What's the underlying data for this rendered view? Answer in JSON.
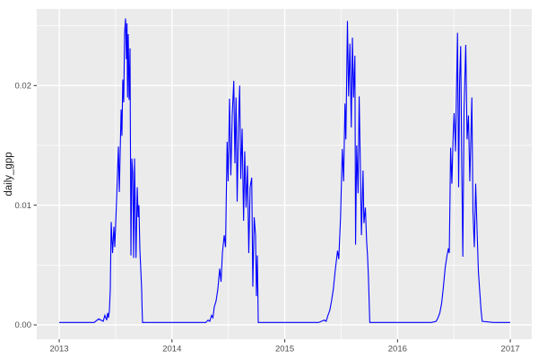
{
  "figure": {
    "background": "#FFFFFF"
  },
  "chart_data": {
    "type": "line",
    "title": "",
    "xlabel": "",
    "ylabel": "daily_gpp",
    "legend": "none",
    "grid": "on",
    "panel_background": "#EBEBEB",
    "grid_major_color": "#FFFFFF",
    "grid_minor_color": "#FFFFFF",
    "tick_mark_color": "#333333",
    "tick_label_color": "#4D4D4D",
    "axis_title_color": "#1A1A1A",
    "xlim": [
      2012.801,
      2017.19
    ],
    "ylim": [
      -0.0012,
      0.0264
    ],
    "x_ticks": [
      {
        "value": 2013,
        "label": "2013"
      },
      {
        "value": 2014,
        "label": "2014"
      },
      {
        "value": 2015,
        "label": "2015"
      },
      {
        "value": 2016,
        "label": "2016"
      },
      {
        "value": 2017,
        "label": "2017"
      }
    ],
    "y_ticks": [
      {
        "value": 0.0,
        "label": "0.00"
      },
      {
        "value": 0.01,
        "label": "0.01"
      },
      {
        "value": 0.02,
        "label": "0.02"
      }
    ],
    "x_minor": [
      2013.5,
      2014.5,
      2015.5,
      2016.5
    ],
    "y_minor": [
      0.005,
      0.015,
      0.025
    ],
    "series": [
      {
        "name": "daily_gpp",
        "color": "#0000FF",
        "points": [
          [
            2013.0,
            0.0002
          ],
          [
            2013.31,
            0.0002
          ],
          [
            2013.35,
            0.0005
          ],
          [
            2013.39,
            0.0003
          ],
          [
            2013.405,
            0.0008
          ],
          [
            2013.421,
            0.0004
          ],
          [
            2013.429,
            0.001
          ],
          [
            2013.437,
            0.0006
          ],
          [
            2013.445,
            0.0012
          ],
          [
            2013.453,
            0.003
          ],
          [
            2013.461,
            0.0086
          ],
          [
            2013.473,
            0.006
          ],
          [
            2013.485,
            0.0082
          ],
          [
            2013.493,
            0.0065
          ],
          [
            2013.509,
            0.0105
          ],
          [
            2013.525,
            0.0149
          ],
          [
            2013.533,
            0.0111
          ],
          [
            2013.549,
            0.018
          ],
          [
            2013.556,
            0.0158
          ],
          [
            2013.564,
            0.0205
          ],
          [
            2013.572,
            0.0186
          ],
          [
            2013.58,
            0.0244
          ],
          [
            2013.588,
            0.0256
          ],
          [
            2013.596,
            0.0222
          ],
          [
            2013.601,
            0.0252
          ],
          [
            2013.606,
            0.019
          ],
          [
            2013.612,
            0.0243
          ],
          [
            2013.62,
            0.0188
          ],
          [
            2013.628,
            0.0231
          ],
          [
            2013.636,
            0.0058
          ],
          [
            2013.644,
            0.0139
          ],
          [
            2013.652,
            0.0127
          ],
          [
            2013.66,
            0.0056
          ],
          [
            2013.668,
            0.0139
          ],
          [
            2013.676,
            0.0088
          ],
          [
            2013.681,
            0.0056
          ],
          [
            2013.692,
            0.0115
          ],
          [
            2013.7,
            0.009
          ],
          [
            2013.707,
            0.01
          ],
          [
            2013.715,
            0.0064
          ],
          [
            2013.723,
            0.0047
          ],
          [
            2013.731,
            0.003
          ],
          [
            2013.736,
            0.001
          ],
          [
            2013.739,
            0.0002
          ],
          [
            2013.8,
            0.0002
          ],
          [
            2014.3,
            0.0002
          ],
          [
            2014.32,
            0.0004
          ],
          [
            2014.335,
            0.0003
          ],
          [
            2014.351,
            0.0008
          ],
          [
            2014.363,
            0.0006
          ],
          [
            2014.375,
            0.0015
          ],
          [
            2014.391,
            0.002
          ],
          [
            2014.407,
            0.003
          ],
          [
            2014.423,
            0.0047
          ],
          [
            2014.435,
            0.0036
          ],
          [
            2014.447,
            0.006
          ],
          [
            2014.463,
            0.0075
          ],
          [
            2014.475,
            0.0065
          ],
          [
            2014.489,
            0.0153
          ],
          [
            2014.498,
            0.012
          ],
          [
            2014.51,
            0.0189
          ],
          [
            2014.522,
            0.0125
          ],
          [
            2014.534,
            0.0175
          ],
          [
            2014.548,
            0.0204
          ],
          [
            2014.558,
            0.0135
          ],
          [
            2014.568,
            0.019
          ],
          [
            2014.578,
            0.0103
          ],
          [
            2014.59,
            0.0168
          ],
          [
            2014.6,
            0.02
          ],
          [
            2014.61,
            0.0122
          ],
          [
            2014.622,
            0.0164
          ],
          [
            2014.635,
            0.0087
          ],
          [
            2014.645,
            0.0145
          ],
          [
            2014.657,
            0.0098
          ],
          [
            2014.669,
            0.0133
          ],
          [
            2014.681,
            0.006
          ],
          [
            2014.693,
            0.0115
          ],
          [
            2014.707,
            0.0123
          ],
          [
            2014.717,
            0.0032
          ],
          [
            2014.729,
            0.009
          ],
          [
            2014.741,
            0.0075
          ],
          [
            2014.749,
            0.0024
          ],
          [
            2014.757,
            0.0058
          ],
          [
            2014.762,
            0.0025
          ],
          [
            2014.765,
            0.0002
          ],
          [
            2014.85,
            0.0002
          ],
          [
            2015.3,
            0.0002
          ],
          [
            2015.351,
            0.0004
          ],
          [
            2015.367,
            0.0003
          ],
          [
            2015.383,
            0.0008
          ],
          [
            2015.399,
            0.0012
          ],
          [
            2015.415,
            0.002
          ],
          [
            2015.431,
            0.003
          ],
          [
            2015.447,
            0.0045
          ],
          [
            2015.468,
            0.0062
          ],
          [
            2015.479,
            0.0055
          ],
          [
            2015.495,
            0.009
          ],
          [
            2015.51,
            0.0147
          ],
          [
            2015.522,
            0.012
          ],
          [
            2015.534,
            0.0185
          ],
          [
            2015.542,
            0.0155
          ],
          [
            2015.556,
            0.0254
          ],
          [
            2015.566,
            0.0191
          ],
          [
            2015.578,
            0.0235
          ],
          [
            2015.59,
            0.0165
          ],
          [
            2015.6,
            0.024
          ],
          [
            2015.61,
            0.019
          ],
          [
            2015.622,
            0.0225
          ],
          [
            2015.628,
            0.0067
          ],
          [
            2015.638,
            0.015
          ],
          [
            2015.65,
            0.011
          ],
          [
            2015.66,
            0.0191
          ],
          [
            2015.67,
            0.0135
          ],
          [
            2015.68,
            0.0075
          ],
          [
            2015.694,
            0.0129
          ],
          [
            2015.702,
            0.0085
          ],
          [
            2015.715,
            0.0098
          ],
          [
            2015.726,
            0.007
          ],
          [
            2015.734,
            0.0058
          ],
          [
            2015.742,
            0.004
          ],
          [
            2015.75,
            0.0015
          ],
          [
            2015.754,
            0.0002
          ],
          [
            2015.85,
            0.0002
          ],
          [
            2016.3,
            0.0002
          ],
          [
            2016.343,
            0.0003
          ],
          [
            2016.359,
            0.0006
          ],
          [
            2016.375,
            0.001
          ],
          [
            2016.391,
            0.0018
          ],
          [
            2016.407,
            0.0032
          ],
          [
            2016.423,
            0.0048
          ],
          [
            2016.439,
            0.0058
          ],
          [
            2016.451,
            0.0064
          ],
          [
            2016.459,
            0.006
          ],
          [
            2016.471,
            0.0148
          ],
          [
            2016.482,
            0.0118
          ],
          [
            2016.494,
            0.016
          ],
          [
            2016.502,
            0.0177
          ],
          [
            2016.514,
            0.0145
          ],
          [
            2016.532,
            0.0244
          ],
          [
            2016.542,
            0.0115
          ],
          [
            2016.551,
            0.0205
          ],
          [
            2016.56,
            0.0233
          ],
          [
            2016.57,
            0.013
          ],
          [
            2016.579,
            0.0057
          ],
          [
            2016.59,
            0.018
          ],
          [
            2016.605,
            0.0234
          ],
          [
            2016.617,
            0.0155
          ],
          [
            2016.629,
            0.0175
          ],
          [
            2016.641,
            0.012
          ],
          [
            2016.659,
            0.019
          ],
          [
            2016.669,
            0.0095
          ],
          [
            2016.681,
            0.0065
          ],
          [
            2016.693,
            0.0118
          ],
          [
            2016.705,
            0.008
          ],
          [
            2016.717,
            0.0045
          ],
          [
            2016.729,
            0.0028
          ],
          [
            2016.741,
            0.0012
          ],
          [
            2016.751,
            0.0003
          ],
          [
            2016.85,
            0.0002
          ],
          [
            2017.0,
            0.0002
          ]
        ]
      }
    ]
  }
}
